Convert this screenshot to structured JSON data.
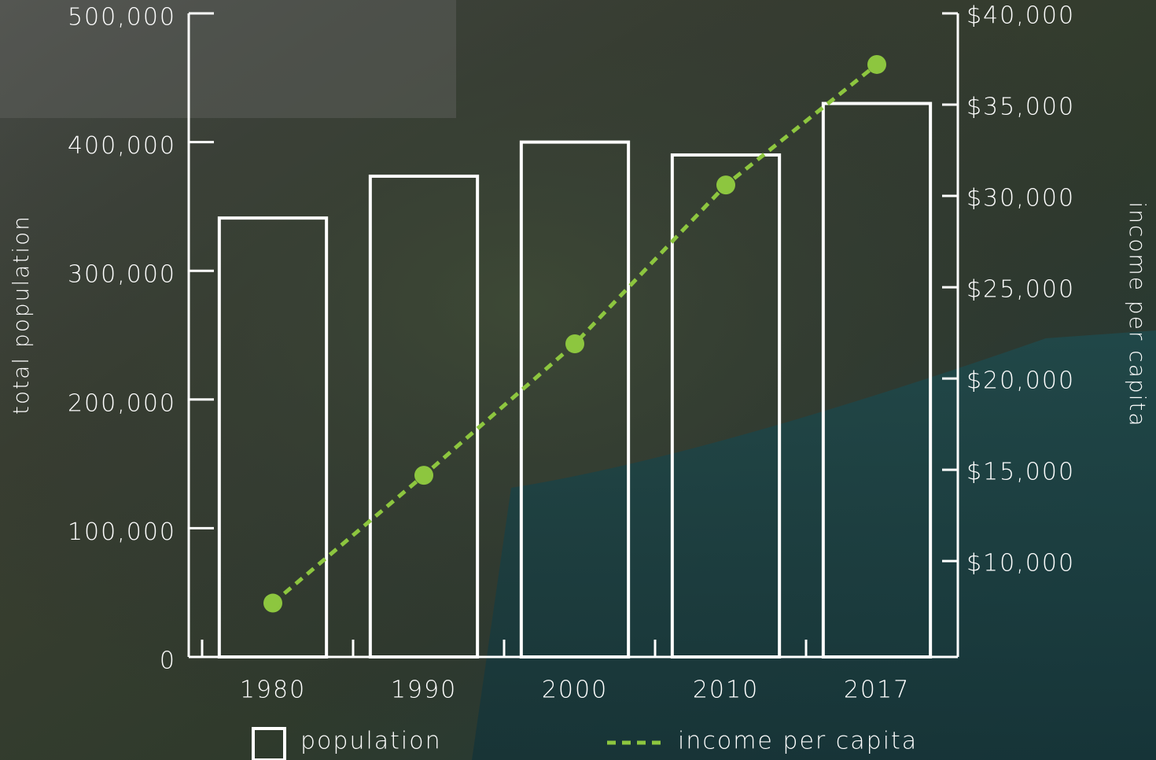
{
  "chart_data": {
    "type": "bar",
    "categories": [
      "1980",
      "1990",
      "2000",
      "2010",
      "2017"
    ],
    "series": [
      {
        "name": "population",
        "color": "#ffffff",
        "values": [
          341000,
          373500,
          400000,
          390000,
          430000
        ]
      },
      {
        "name": "income per capita",
        "type": "line",
        "color": "#8dc63f",
        "axis": "y2",
        "values": [
          7700,
          14700,
          21900,
          30600,
          37200
        ]
      }
    ],
    "y_label": "total population",
    "y2_label": "income per capita",
    "ylim": [
      0,
      500000
    ],
    "yticks": [
      0,
      {
        "value": 100000,
        "label": "100,000"
      },
      {
        "value": 200000,
        "label": "200,000"
      },
      {
        "value": 300000,
        "label": "300,000"
      },
      {
        "value": 400000,
        "label": "400,000"
      },
      {
        "value": 500000,
        "label": "500,000"
      }
    ],
    "y2lim": [
      4750,
      40000
    ],
    "y2ticks": [
      {
        "value": 10000,
        "label": "$10,000"
      },
      {
        "value": 15000,
        "label": "$15,000"
      },
      {
        "value": 20000,
        "label": "$20,000"
      },
      {
        "value": 25000,
        "label": "$25,000"
      },
      {
        "value": 30000,
        "label": "$30,000"
      },
      {
        "value": 35000,
        "label": "$35,000"
      },
      {
        "value": 40000,
        "label": "$40,000"
      }
    ]
  }
}
